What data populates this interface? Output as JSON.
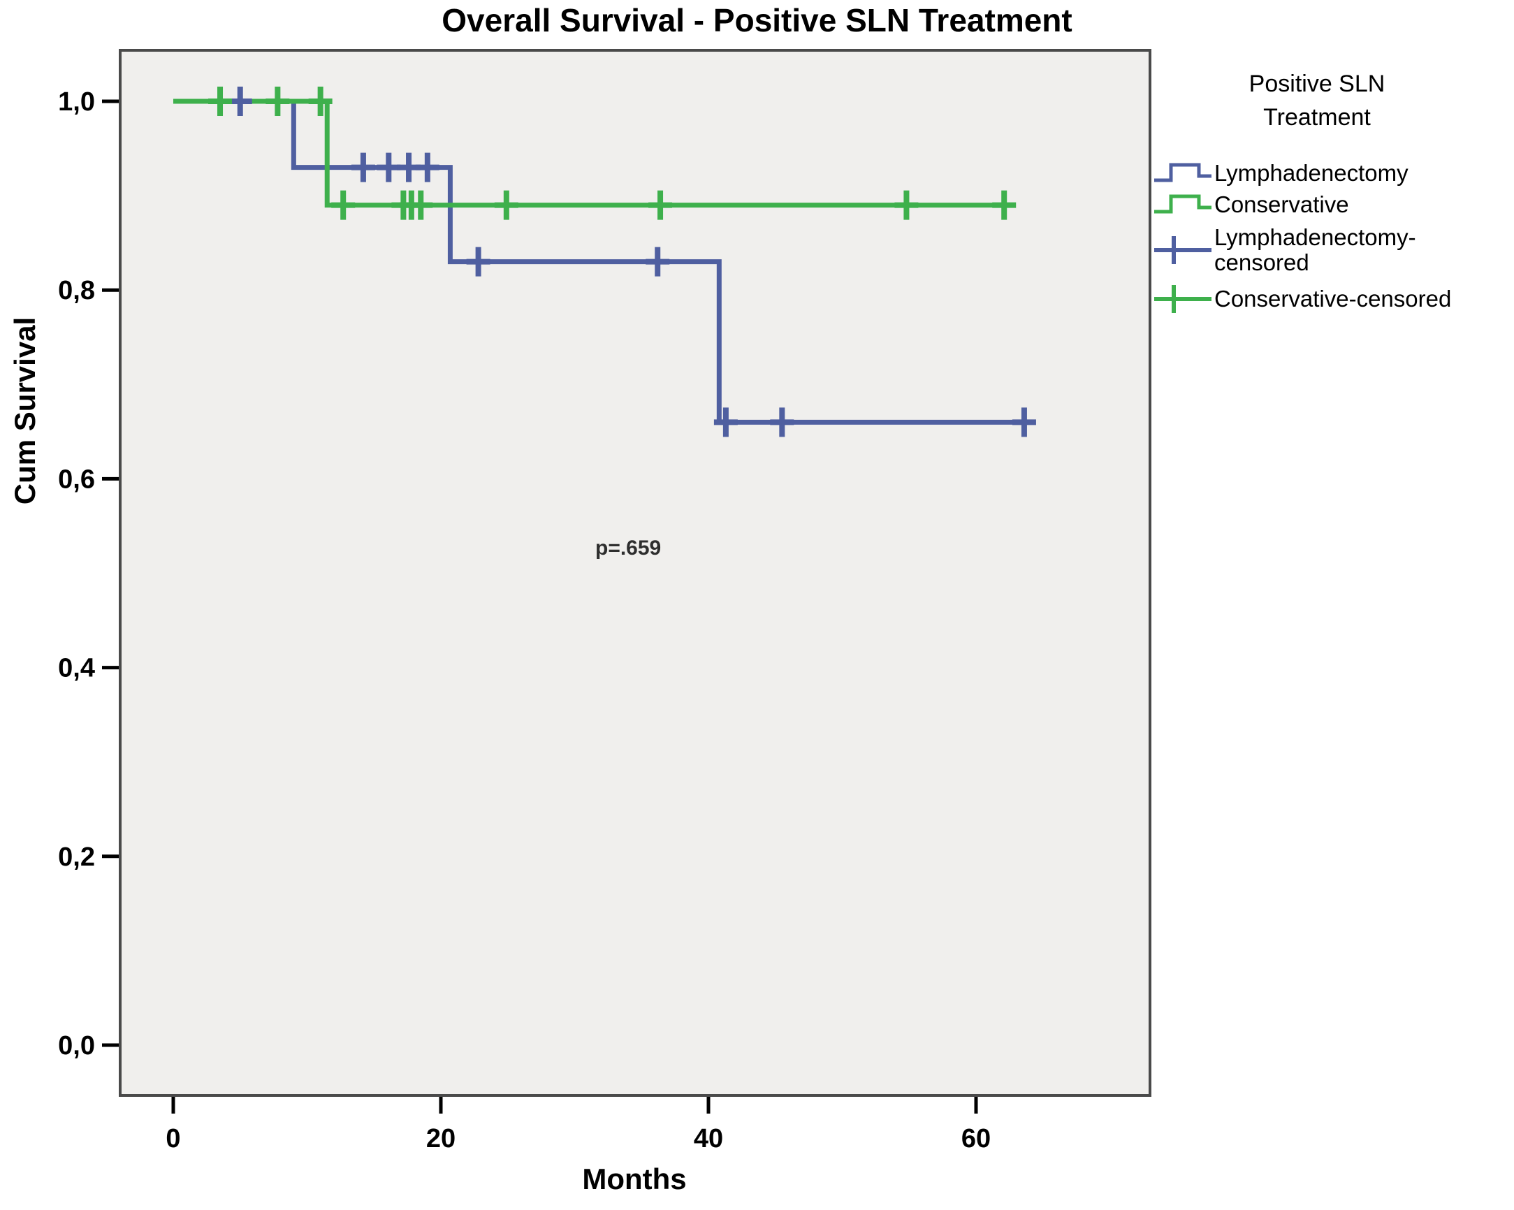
{
  "chart_data": {
    "type": "line",
    "subtype": "kaplan-meier-step",
    "title": "Overall Survival - Positive SLN Treatment",
    "xlabel": "Months",
    "ylabel": "Cum Survival",
    "annotation": "p=.659",
    "x_ticks": [
      "0",
      "20",
      "40",
      "60"
    ],
    "x_tick_values": [
      0,
      20,
      40,
      60
    ],
    "y_ticks": [
      "1,0",
      "0,8",
      "0,6",
      "0,4",
      "0,2",
      "0,0"
    ],
    "y_tick_values": [
      1.0,
      0.8,
      0.6,
      0.4,
      0.2,
      0.0
    ],
    "xlim": [
      -4,
      73
    ],
    "ylim": [
      -0.05,
      1.05
    ],
    "grid": false,
    "legend_position": "right",
    "plot_bg_color": "#f0efed",
    "frame_color": "#4a4a4a",
    "series": [
      {
        "name": "Lymphadenectomy",
        "color": "#4f5fa0",
        "steps": [
          [
            0,
            1.0
          ],
          [
            9,
            1.0
          ],
          [
            9,
            0.93
          ],
          [
            20.7,
            0.93
          ],
          [
            20.7,
            0.83
          ],
          [
            40.8,
            0.83
          ],
          [
            40.8,
            0.66
          ],
          [
            64.3,
            0.66
          ]
        ],
        "censored": [
          [
            5,
            1.0
          ],
          [
            14.2,
            0.93
          ],
          [
            16.1,
            0.93
          ],
          [
            17.6,
            0.93
          ],
          [
            19.0,
            0.93
          ],
          [
            22.8,
            0.83
          ],
          [
            36.2,
            0.83
          ],
          [
            41.3,
            0.66
          ],
          [
            45.5,
            0.66
          ],
          [
            63.6,
            0.66
          ]
        ]
      },
      {
        "name": "Conservative",
        "color": "#3eb04c",
        "steps": [
          [
            0,
            1.0
          ],
          [
            11.5,
            1.0
          ],
          [
            11.5,
            0.89
          ],
          [
            62.8,
            0.89
          ]
        ],
        "censored": [
          [
            3.5,
            1.0
          ],
          [
            7.8,
            1.0
          ],
          [
            11.0,
            1.0
          ],
          [
            12.7,
            0.89
          ],
          [
            17.2,
            0.89
          ],
          [
            17.8,
            0.89
          ],
          [
            18.5,
            0.89
          ],
          [
            24.9,
            0.89
          ],
          [
            36.4,
            0.89
          ],
          [
            54.8,
            0.89
          ],
          [
            62.1,
            0.89
          ]
        ]
      }
    ],
    "legend": {
      "title_lines": [
        "Positive SLN",
        "Treatment"
      ],
      "entries": [
        {
          "lines": [
            "Lymphadenectomy",
            null
          ],
          "symbol": "step",
          "color": "#4f5fa0"
        },
        {
          "lines": [
            "Conservative",
            null
          ],
          "symbol": "step",
          "color": "#3eb04c"
        },
        {
          "lines": [
            "Lymphadenectomy-",
            "censored"
          ],
          "symbol": "plus",
          "color": "#4f5fa0"
        },
        {
          "lines": [
            "Conservative-censored",
            null
          ],
          "symbol": "plus",
          "color": "#3eb04c"
        }
      ]
    }
  }
}
